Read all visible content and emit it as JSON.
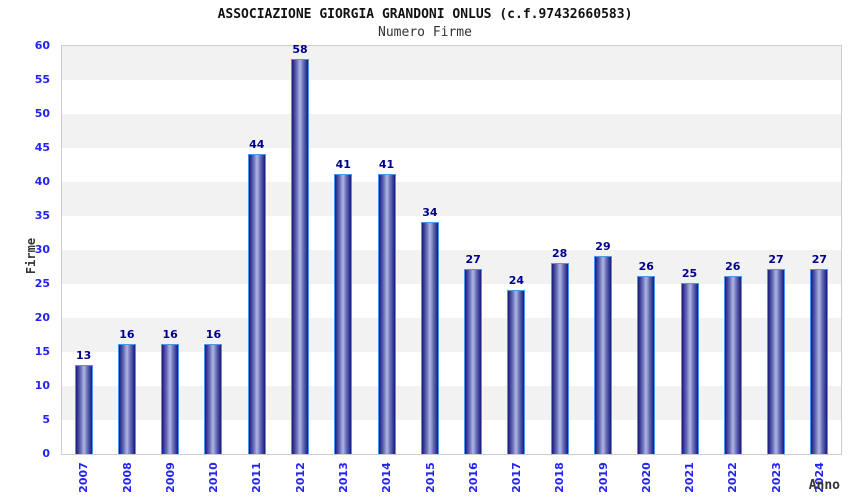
{
  "chart_data": {
    "type": "bar",
    "title": "ASSOCIAZIONE GIORGIA GRANDONI ONLUS (c.f.97432660583)",
    "subtitle": "Numero Firme",
    "xlabel": "Anno",
    "ylabel": "Firme",
    "categories": [
      "2007",
      "2008",
      "2009",
      "2010",
      "2011",
      "2012",
      "2013",
      "2014",
      "2015",
      "2016",
      "2017",
      "2018",
      "2019",
      "2020",
      "2021",
      "2022",
      "2023",
      "2024"
    ],
    "values": [
      13,
      16,
      16,
      16,
      44,
      58,
      41,
      41,
      34,
      27,
      24,
      28,
      29,
      26,
      25,
      26,
      27,
      27
    ],
    "ylim": [
      0,
      60
    ],
    "ytick_step": 5,
    "yticks": [
      0,
      5,
      10,
      15,
      20,
      25,
      30,
      35,
      40,
      45,
      50,
      55,
      60
    ],
    "grid": "alternating-horizontal-bands",
    "legend": "none",
    "colors": {
      "tick_label": "#2424f0",
      "value_label": "#00008b",
      "bar_dark": "#191980",
      "bar_mid": "#6a70b8",
      "bar_light": "#b0b6e0",
      "bar_border": "#4a97ee",
      "band_gray": "#f2f2f2",
      "band_white": "#ffffff",
      "plot_border": "#cccccc",
      "title_color": "#111111",
      "axis_title_color": "#333333"
    }
  }
}
